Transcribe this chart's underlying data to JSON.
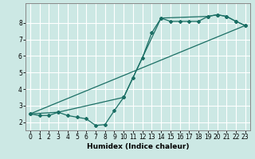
{
  "title": "",
  "xlabel": "Humidex (Indice chaleur)",
  "bg_color": "#cce8e4",
  "grid_color": "#ffffff",
  "line_color": "#1a6e64",
  "xlim": [
    -0.5,
    23.5
  ],
  "ylim": [
    1.5,
    9.2
  ],
  "xticks": [
    0,
    1,
    2,
    3,
    4,
    5,
    6,
    7,
    8,
    9,
    10,
    11,
    12,
    13,
    14,
    15,
    16,
    17,
    18,
    19,
    20,
    21,
    22,
    23
  ],
  "yticks": [
    2,
    3,
    4,
    5,
    6,
    7,
    8
  ],
  "line1_x": [
    0,
    1,
    2,
    3,
    4,
    5,
    6,
    7,
    8,
    9,
    10,
    11,
    12,
    13,
    14,
    15,
    16,
    17,
    18,
    19,
    20,
    21,
    22,
    23
  ],
  "line1_y": [
    2.5,
    2.4,
    2.4,
    2.6,
    2.4,
    2.3,
    2.2,
    1.8,
    1.85,
    2.7,
    3.5,
    4.7,
    5.9,
    7.4,
    8.3,
    8.1,
    8.1,
    8.1,
    8.1,
    8.4,
    8.5,
    8.4,
    8.1,
    7.85
  ],
  "line2_x": [
    0,
    3,
    10,
    14,
    19,
    20,
    21,
    22,
    23
  ],
  "line2_y": [
    2.5,
    2.6,
    3.5,
    8.3,
    8.4,
    8.5,
    8.4,
    8.1,
    7.85
  ],
  "line3_x": [
    0,
    23
  ],
  "line3_y": [
    2.5,
    7.85
  ],
  "tick_fontsize": 5.5,
  "xlabel_fontsize": 6.5
}
